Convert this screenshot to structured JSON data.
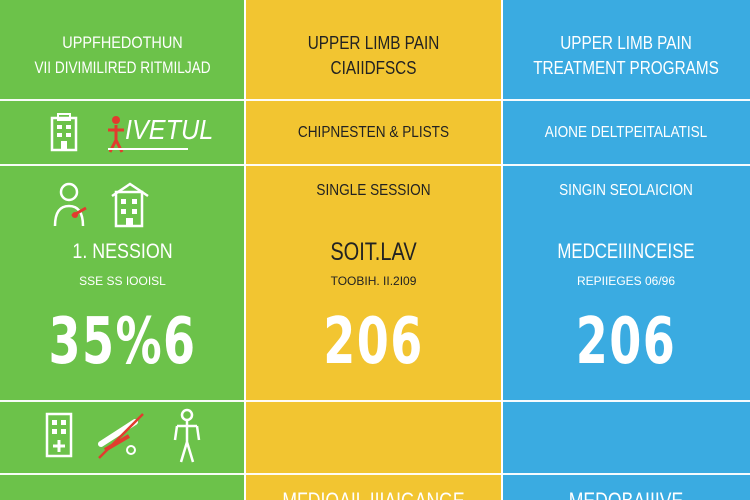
{
  "colors": {
    "green": "#6cc24a",
    "yellow": "#f2c531",
    "blue": "#3aabe1",
    "white": "#ffffff",
    "dark": "#222222",
    "red": "#e23b2e"
  },
  "col1": {
    "title_line1": "UPPFHEDOTHUN",
    "title_line2": "VII DIVIMILIRED RITMILJAD",
    "row1_text": "IVETUL",
    "session_label": "1. NESSION",
    "session_sub": "SSE SS IOOISL",
    "price": "35%6",
    "icons": [
      "hospital-building-icon",
      "person-pain-icon",
      "person-injury-icon",
      "building-icon",
      "clinic-icon",
      "broken-bone-icon",
      "body-figure-icon"
    ]
  },
  "col2": {
    "title_line1": "UPPER LIMB PAIN",
    "title_line2": "CIAIIDFSCS",
    "row1_text": "CHIPNESTEN & PLISTS",
    "row2_text": "SINGLE SESSION",
    "session_label": "SOIT.LAV",
    "session_sub": "TOOBIH. II.2I09",
    "price": "206",
    "bottom_text": "MFDIQAIL IIIAIGANGE"
  },
  "col3": {
    "title_line1": "UPPER LIMB PAIN",
    "title_line2": "TREATMENT PROGRAMS",
    "row1_text": "AIONE DELTPEITALATISL",
    "row2_text": "SINGIN SEOLAICION",
    "session_label": "MEDCEIIINCEISE",
    "session_sub": "REPIIEGES 06/96",
    "price": "206",
    "bottom_text": "MEDOBAIIIVE"
  }
}
